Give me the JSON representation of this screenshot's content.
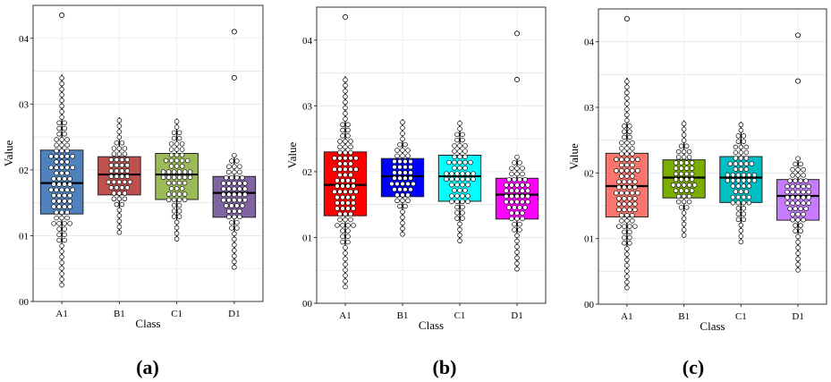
{
  "chart_data": [
    {
      "type": "boxplot",
      "caption": "(a)",
      "xlabel": "Class",
      "ylabel": "Value",
      "categories": [
        "A1",
        "B1",
        "C1",
        "D1"
      ],
      "ylim": [
        0,
        0.45
      ],
      "yticks": [
        0,
        0.1,
        0.2,
        0.3,
        0.4
      ],
      "ytick_labels": [
        "00",
        "01",
        "02",
        "03",
        "04"
      ],
      "colors": [
        "#4f81bd",
        "#c0504d",
        "#9bbb59",
        "#8064a2"
      ],
      "boxes": [
        {
          "name": "A1",
          "whisker_low": 0.025,
          "q1": 0.133,
          "median": 0.18,
          "q3": 0.23,
          "whisker_high": 0.345,
          "outliers": [
            0.435
          ]
        },
        {
          "name": "B1",
          "whisker_low": 0.105,
          "q1": 0.162,
          "median": 0.193,
          "q3": 0.22,
          "whisker_high": 0.28,
          "outliers": []
        },
        {
          "name": "C1",
          "whisker_low": 0.095,
          "q1": 0.155,
          "median": 0.193,
          "q3": 0.225,
          "whisker_high": 0.278,
          "outliers": []
        },
        {
          "name": "D1",
          "whisker_low": 0.052,
          "q1": 0.128,
          "median": 0.165,
          "q3": 0.19,
          "whisker_high": 0.225,
          "outliers": [
            0.34,
            0.41
          ]
        }
      ]
    },
    {
      "type": "boxplot",
      "caption": "(b)",
      "xlabel": "Class",
      "ylabel": "Value",
      "categories": [
        "A1",
        "B1",
        "C1",
        "D1"
      ],
      "ylim": [
        0,
        0.45
      ],
      "yticks": [
        0,
        0.1,
        0.2,
        0.3,
        0.4
      ],
      "ytick_labels": [
        "00",
        "01",
        "02",
        "03",
        "04"
      ],
      "colors": [
        "#ff0000",
        "#0000ff",
        "#00ffff",
        "#ff00ff"
      ],
      "boxes": [
        {
          "name": "A1",
          "whisker_low": 0.025,
          "q1": 0.133,
          "median": 0.18,
          "q3": 0.23,
          "whisker_high": 0.345,
          "outliers": [
            0.435
          ]
        },
        {
          "name": "B1",
          "whisker_low": 0.105,
          "q1": 0.162,
          "median": 0.193,
          "q3": 0.22,
          "whisker_high": 0.28,
          "outliers": []
        },
        {
          "name": "C1",
          "whisker_low": 0.095,
          "q1": 0.155,
          "median": 0.193,
          "q3": 0.225,
          "whisker_high": 0.278,
          "outliers": []
        },
        {
          "name": "D1",
          "whisker_low": 0.052,
          "q1": 0.128,
          "median": 0.165,
          "q3": 0.19,
          "whisker_high": 0.225,
          "outliers": [
            0.34,
            0.41
          ]
        }
      ]
    },
    {
      "type": "boxplot",
      "caption": "(c)",
      "xlabel": "Class",
      "ylabel": "Value",
      "categories": [
        "A1",
        "B1",
        "C1",
        "D1"
      ],
      "ylim": [
        0,
        0.45
      ],
      "yticks": [
        0,
        0.1,
        0.2,
        0.3,
        0.4
      ],
      "ytick_labels": [
        "00",
        "01",
        "02",
        "03",
        "04"
      ],
      "colors": [
        "#f8766d",
        "#7cae00",
        "#00bfc4",
        "#c77cff"
      ],
      "boxes": [
        {
          "name": "A1",
          "whisker_low": 0.025,
          "q1": 0.133,
          "median": 0.18,
          "q3": 0.23,
          "whisker_high": 0.345,
          "outliers": [
            0.435
          ]
        },
        {
          "name": "B1",
          "whisker_low": 0.105,
          "q1": 0.162,
          "median": 0.193,
          "q3": 0.22,
          "whisker_high": 0.28,
          "outliers": []
        },
        {
          "name": "C1",
          "whisker_low": 0.095,
          "q1": 0.155,
          "median": 0.193,
          "q3": 0.225,
          "whisker_high": 0.278,
          "outliers": []
        },
        {
          "name": "D1",
          "whisker_low": 0.052,
          "q1": 0.128,
          "median": 0.165,
          "q3": 0.19,
          "whisker_high": 0.225,
          "outliers": [
            0.34,
            0.41
          ]
        }
      ]
    }
  ]
}
